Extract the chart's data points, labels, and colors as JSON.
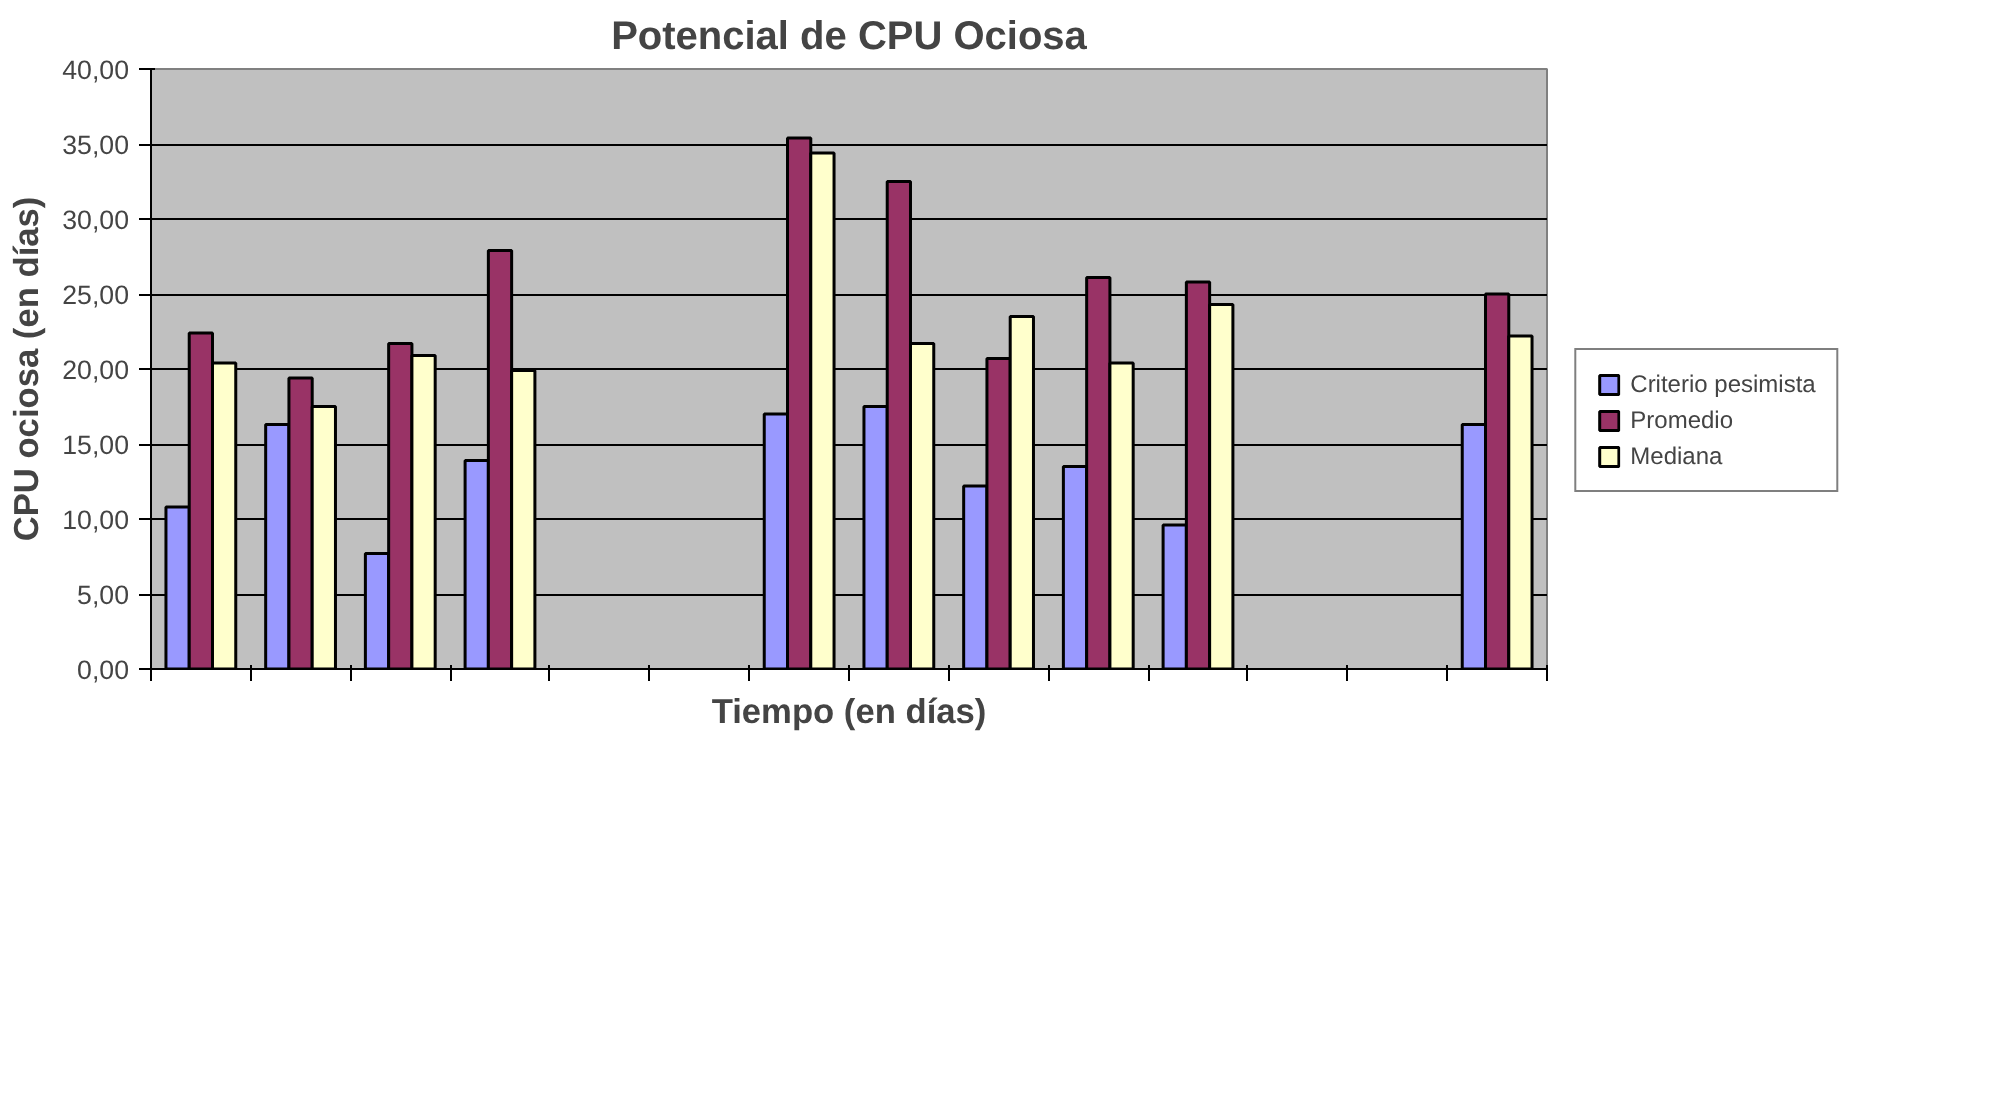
{
  "chart_data": {
    "type": "bar",
    "title": "Potencial de CPU Ociosa",
    "xlabel": "Tiempo (en días)",
    "ylabel": "CPU ociosa (en días)",
    "categories": [
      null,
      null,
      null,
      null,
      null,
      null,
      null,
      null,
      null,
      null,
      null,
      null,
      null,
      null
    ],
    "series": [
      {
        "name": "Criterio pesimista",
        "color": "#9999ff",
        "values": [
          10.8,
          16.3,
          7.7,
          13.9,
          null,
          null,
          17.0,
          17.5,
          12.2,
          13.5,
          9.6,
          null,
          null,
          16.3
        ]
      },
      {
        "name": "Promedio",
        "color": "#993366",
        "values": [
          22.4,
          19.4,
          21.7,
          27.9,
          null,
          null,
          35.4,
          32.5,
          20.7,
          26.1,
          25.8,
          null,
          null,
          25.0
        ]
      },
      {
        "name": "Mediana",
        "color": "#ffffcc",
        "values": [
          20.4,
          17.5,
          20.9,
          19.9,
          null,
          null,
          34.4,
          21.7,
          23.5,
          20.4,
          24.3,
          null,
          null,
          22.2
        ]
      }
    ],
    "ylim": [
      0,
      40
    ],
    "yticks": [
      {
        "value": 0,
        "label": "0,00"
      },
      {
        "value": 5,
        "label": "5,00"
      },
      {
        "value": 10,
        "label": "10,00"
      },
      {
        "value": 15,
        "label": "15,00"
      },
      {
        "value": 20,
        "label": "20,00"
      },
      {
        "value": 25,
        "label": "25,00"
      },
      {
        "value": 30,
        "label": "30,00"
      },
      {
        "value": 35,
        "label": "35,00"
      },
      {
        "value": 40,
        "label": "40,00"
      }
    ],
    "grid": "y",
    "legend": "right"
  }
}
